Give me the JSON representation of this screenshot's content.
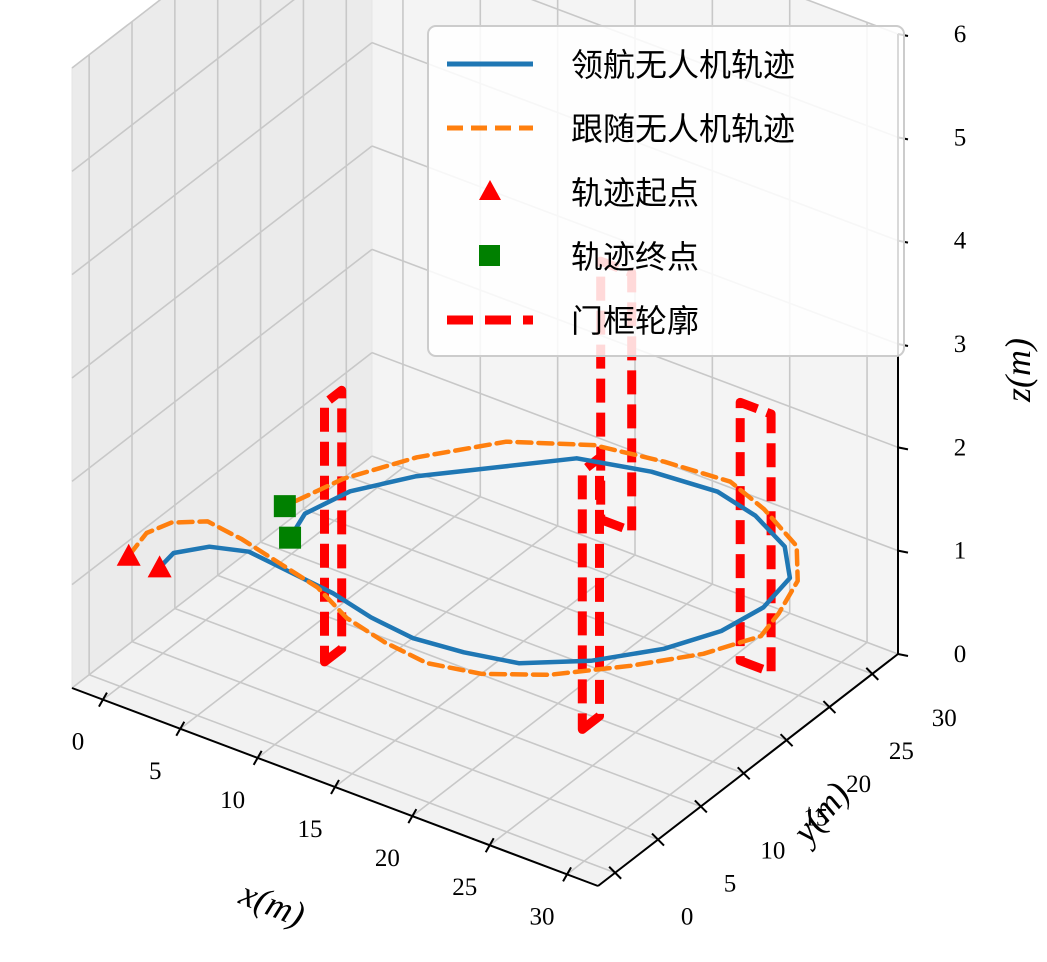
{
  "chart_data": {
    "type": "line",
    "projection": "3d",
    "xlabel": "x(m)",
    "ylabel": "y(m)",
    "zlabel": "z(m)",
    "xlim": [
      -2,
      32
    ],
    "ylim": [
      -2,
      33
    ],
    "zlim": [
      0,
      6
    ],
    "x_ticks": [
      "0",
      "5",
      "10",
      "15",
      "20",
      "25",
      "30"
    ],
    "y_ticks": [
      "0",
      "5",
      "10",
      "15",
      "20",
      "25",
      "30"
    ],
    "z_ticks": [
      "0",
      "1",
      "2",
      "3",
      "4",
      "5",
      "6"
    ],
    "grid": true,
    "legend_position": "upper right",
    "series": [
      {
        "name": "领航无人机轨迹",
        "style": "solid",
        "color": "#1f77b4",
        "x": [
          2.0,
          1.8,
          3.0,
          5.0,
          8.0,
          11.0,
          14.0,
          17.0,
          20.0,
          23.0,
          26.0,
          28.5,
          30.0,
          30.5,
          30.0,
          28.0,
          25.0,
          22.0,
          18.0,
          14.0,
          11.0,
          8.0,
          6.0,
          5.3,
          6.0
        ],
        "y": [
          1.0,
          3.0,
          5.0,
          6.0,
          5.5,
          5.0,
          4.0,
          3.5,
          4.0,
          5.0,
          8.0,
          12.0,
          16.0,
          20.0,
          24.0,
          27.0,
          29.0,
          30.0,
          29.5,
          28.0,
          24.0,
          20.0,
          16.0,
          12.0,
          9.0
        ],
        "z": [
          1.2,
          1.2,
          1.2,
          1.2,
          1.2,
          1.2,
          1.2,
          1.2,
          1.2,
          1.2,
          1.2,
          1.2,
          1.2,
          1.2,
          1.2,
          1.2,
          1.2,
          1.2,
          1.2,
          1.2,
          1.2,
          1.2,
          1.2,
          1.2,
          1.2
        ]
      },
      {
        "name": "跟随无人机轨迹",
        "style": "dashed",
        "color": "#ff7f0e",
        "x": [
          0.0,
          -0.5,
          0.0,
          1.5,
          4.0,
          7.0,
          10.0,
          13.0,
          16.0,
          19.0,
          22.0,
          25.0,
          28.0,
          30.5,
          32.0,
          31.5,
          30.5,
          28.5,
          25.0,
          22.0,
          18.0,
          14.0,
          10.0,
          7.0,
          5.0,
          4.0
        ],
        "y": [
          1.0,
          4.0,
          6.0,
          7.5,
          7.0,
          6.0,
          5.0,
          3.0,
          2.0,
          1.5,
          2.5,
          5.0,
          9.0,
          13.0,
          17.0,
          20.0,
          24.0,
          27.5,
          30.0,
          31.5,
          31.0,
          30.0,
          27.0,
          22.0,
          17.0,
          12.0
        ],
        "z": [
          1.2,
          1.2,
          1.2,
          1.2,
          1.2,
          1.2,
          1.2,
          1.2,
          1.2,
          1.2,
          1.2,
          1.2,
          1.2,
          1.2,
          1.2,
          1.2,
          1.2,
          1.2,
          1.2,
          1.2,
          1.2,
          1.2,
          1.2,
          1.2,
          1.2,
          1.2
        ]
      }
    ],
    "markers": [
      {
        "name": "轨迹起点",
        "shape": "triangle",
        "color": "#ff0000",
        "points": [
          {
            "x": 2.0,
            "y": 1.0,
            "z": 1.2
          },
          {
            "x": 0.0,
            "y": 1.0,
            "z": 1.2
          }
        ]
      },
      {
        "name": "轨迹终点",
        "shape": "square",
        "color": "#008000",
        "points": [
          {
            "x": 6.0,
            "y": 9.0,
            "z": 1.2
          },
          {
            "x": 4.0,
            "y": 12.0,
            "z": 1.2
          }
        ]
      }
    ],
    "gates": {
      "name": "门框轮廓",
      "style": "dashed",
      "color": "#ff0000",
      "width": 2.0,
      "height": 2.5,
      "bottom_z": 0.6,
      "items": [
        {
          "x": 11.0,
          "y": 5.0,
          "orientation": "x"
        },
        {
          "x": 26.0,
          "y": 8.0,
          "orientation": "x"
        },
        {
          "x": 30.0,
          "y": 20.0,
          "orientation": "y"
        },
        {
          "x": 16.0,
          "y": 29.0,
          "orientation": "y"
        }
      ]
    },
    "legend": [
      "领航无人机轨迹",
      "跟随无人机轨迹",
      "轨迹起点",
      "轨迹终点",
      "门框轮廓"
    ]
  }
}
